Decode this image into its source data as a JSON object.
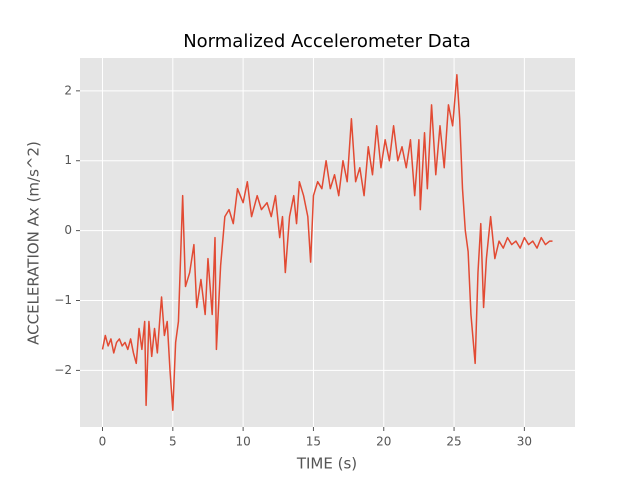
{
  "chart_data": {
    "type": "line",
    "title": "Normalized Accelerometer Data",
    "x_label": "TIME (s)",
    "y_label": "ACCELERATION Ax (m/s^2)",
    "color": "#E24A33",
    "grid": true,
    "x": [
      0,
      0.2,
      0.4,
      0.6,
      0.8,
      1.0,
      1.2,
      1.4,
      1.6,
      1.8,
      2.0,
      2.2,
      2.4,
      2.6,
      2.8,
      3.0,
      3.1,
      3.3,
      3.5,
      3.7,
      3.9,
      4.1,
      4.2,
      4.4,
      4.6,
      4.8,
      5.0,
      5.2,
      5.4,
      5.6,
      5.7,
      5.9,
      6.2,
      6.5,
      6.7,
      7.0,
      7.3,
      7.5,
      7.8,
      8.0,
      8.1,
      8.4,
      8.7,
      9.0,
      9.3,
      9.6,
      10.0,
      10.3,
      10.6,
      11.0,
      11.3,
      11.7,
      12.0,
      12.3,
      12.6,
      12.8,
      13.0,
      13.3,
      13.6,
      13.8,
      14.0,
      14.3,
      14.6,
      14.8,
      15.0,
      15.3,
      15.6,
      15.9,
      16.2,
      16.5,
      16.8,
      17.1,
      17.4,
      17.7,
      18.0,
      18.3,
      18.6,
      18.9,
      19.2,
      19.5,
      19.8,
      20.1,
      20.4,
      20.7,
      21.0,
      21.3,
      21.6,
      21.9,
      22.2,
      22.5,
      22.6,
      22.9,
      23.1,
      23.4,
      23.7,
      24.0,
      24.3,
      24.6,
      24.9,
      25.2,
      25.4,
      25.6,
      25.8,
      26.0,
      26.2,
      26.5,
      26.7,
      26.9,
      27.1,
      27.3,
      27.6,
      27.9,
      28.2,
      28.5,
      28.8,
      29.1,
      29.4,
      29.7,
      30.0,
      30.3,
      30.6,
      30.9,
      31.2,
      31.5,
      31.8,
      32.0
    ],
    "values": [
      -1.7,
      -1.5,
      -1.65,
      -1.55,
      -1.75,
      -1.6,
      -1.55,
      -1.65,
      -1.6,
      -1.7,
      -1.55,
      -1.75,
      -1.9,
      -1.4,
      -1.7,
      -1.3,
      -2.5,
      -1.3,
      -1.8,
      -1.4,
      -1.75,
      -1.2,
      -0.95,
      -1.5,
      -1.3,
      -2.0,
      -2.57,
      -1.6,
      -1.3,
      -0.1,
      0.5,
      -0.8,
      -0.6,
      -0.2,
      -1.1,
      -0.7,
      -1.2,
      -0.4,
      -1.2,
      -0.1,
      -1.7,
      -0.5,
      0.2,
      0.3,
      0.1,
      0.6,
      0.4,
      0.7,
      0.2,
      0.5,
      0.3,
      0.4,
      0.2,
      0.5,
      -0.1,
      0.2,
      -0.6,
      0.2,
      0.5,
      0.1,
      0.7,
      0.5,
      0.2,
      -0.45,
      0.5,
      0.7,
      0.6,
      1.0,
      0.6,
      0.8,
      0.5,
      1.0,
      0.7,
      1.6,
      0.7,
      0.9,
      0.5,
      1.2,
      0.8,
      1.5,
      0.9,
      1.3,
      1.0,
      1.5,
      1.0,
      1.2,
      0.9,
      1.3,
      0.5,
      1.3,
      0.3,
      1.4,
      0.6,
      1.8,
      0.8,
      1.5,
      0.9,
      1.8,
      1.5,
      2.23,
      1.6,
      0.6,
      0.0,
      -0.3,
      -1.2,
      -1.9,
      -0.6,
      0.1,
      -1.1,
      -0.4,
      0.2,
      -0.4,
      -0.15,
      -0.25,
      -0.1,
      -0.2,
      -0.15,
      -0.25,
      -0.1,
      -0.2,
      -0.15,
      -0.25,
      -0.1,
      -0.2,
      -0.15,
      -0.15
    ],
    "xlim": [
      -1.6,
      33.6
    ],
    "xticks": [
      0,
      5,
      10,
      15,
      20,
      25,
      30
    ],
    "ylim": [
      -2.81,
      2.47
    ],
    "yticks": [
      {
        "value": -2,
        "label": "−2"
      },
      {
        "value": -1,
        "label": "−1"
      },
      0,
      1,
      2
    ]
  }
}
